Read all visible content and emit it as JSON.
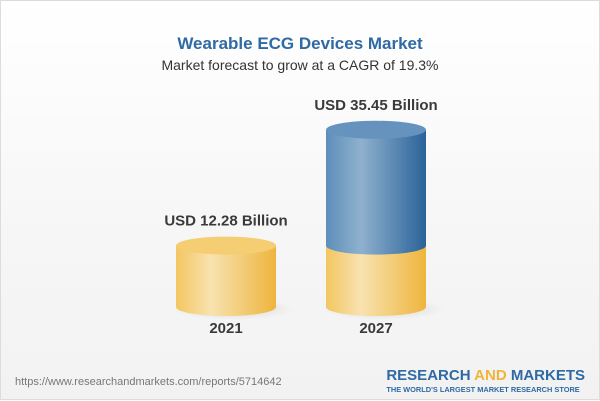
{
  "title": "Wearable ECG Devices Market",
  "subtitle": "Market forecast to grow at a CAGR of 19.3%",
  "chart_data": {
    "type": "bar",
    "style": "3d-cylinder",
    "categories": [
      "2021",
      "2027"
    ],
    "values": [
      12.28,
      35.45
    ],
    "data_labels": [
      "USD 12.28 Billion",
      "USD 35.45 Billion"
    ],
    "unit": "USD Billion",
    "colors": {
      "base": "#f2c35a",
      "growth": "#3d77aa"
    },
    "grid": false
  },
  "footer": {
    "url": "https://www.researchandmarkets.com/reports/5714642",
    "logo_part1": "RESEARCH",
    "logo_part2": "AND",
    "logo_part3": "MARKETS",
    "tagline": "THE WORLD'S LARGEST MARKET RESEARCH STORE"
  }
}
